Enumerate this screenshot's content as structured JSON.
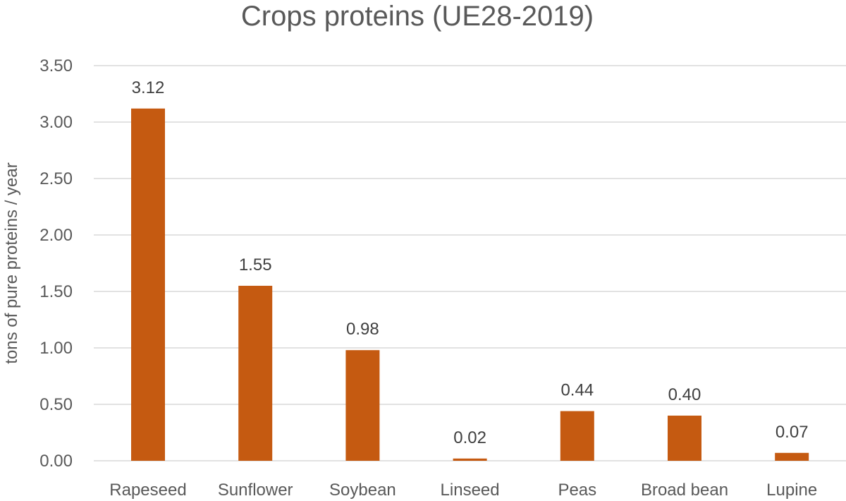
{
  "chart_data": {
    "type": "bar",
    "title": "Crops proteins (UE28-2019)",
    "xlabel": "",
    "ylabel": "tons of pure proteins / year",
    "categories": [
      "Rapeseed",
      "Sunflower",
      "Soybean",
      "Linseed",
      "Peas",
      "Broad bean",
      "Lupine"
    ],
    "values": [
      3.12,
      1.55,
      0.98,
      0.02,
      0.44,
      0.4,
      0.07
    ],
    "data_labels": [
      "3.12",
      "1.55",
      "0.98",
      "0.02",
      "0.44",
      "0.40",
      "0.07"
    ],
    "ylim": [
      0,
      3.5
    ],
    "y_ticks": [
      0,
      0.5,
      1.0,
      1.5,
      2.0,
      2.5,
      3.0,
      3.5
    ],
    "y_tick_labels": [
      "0.00",
      "0.50",
      "1.00",
      "1.50",
      "2.00",
      "2.50",
      "3.00",
      "3.50"
    ],
    "grid": true,
    "legend": "none",
    "bar_color": "#c55a11"
  }
}
